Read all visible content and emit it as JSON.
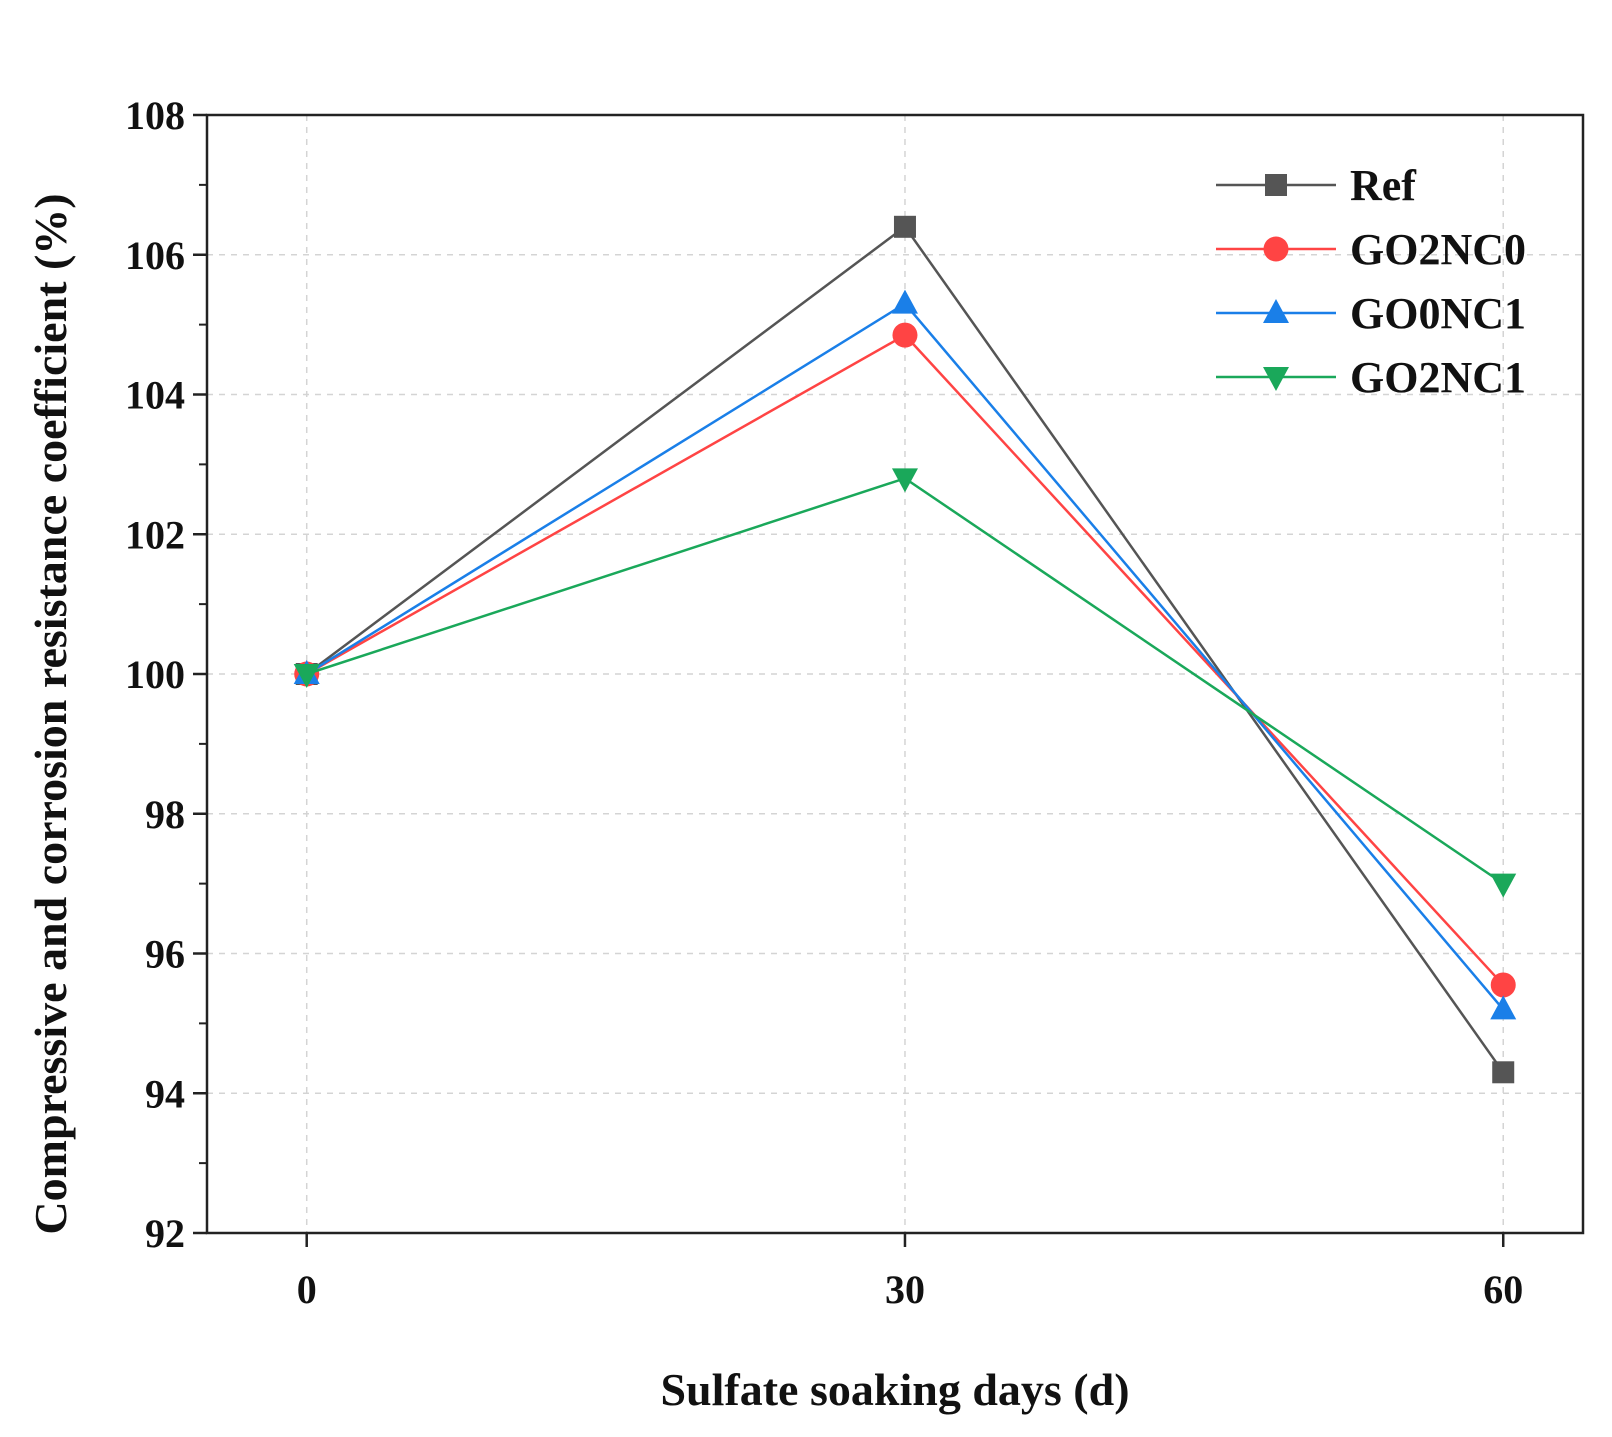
{
  "chart_data": {
    "type": "line",
    "title": "",
    "xlabel": "Sulfate soaking days (d)",
    "ylabel": "Compressive and corrosion resistance coefficient (%)",
    "x": [
      0,
      30,
      60
    ],
    "x_ticks": [
      "0",
      "30",
      "60"
    ],
    "xlim": [
      -5,
      64
    ],
    "ylim": [
      92,
      108
    ],
    "y_ticks": [
      "92",
      "94",
      "96",
      "98",
      "100",
      "102",
      "104",
      "106",
      "108"
    ],
    "grid": true,
    "legend_position": "top-right",
    "series": [
      {
        "name": "Ref",
        "values": [
          100,
          106.4,
          94.3
        ],
        "color": "#555555",
        "marker": "square"
      },
      {
        "name": "GO2NC0",
        "values": [
          100,
          104.85,
          95.55
        ],
        "color": "#ff4444",
        "marker": "circle"
      },
      {
        "name": "GO0NC1",
        "values": [
          100,
          105.3,
          95.2
        ],
        "color": "#1a7fe8",
        "marker": "triangle-up"
      },
      {
        "name": "GO2NC1",
        "values": [
          100,
          102.8,
          97.0
        ],
        "color": "#1aa85a",
        "marker": "triangle-down"
      }
    ]
  }
}
